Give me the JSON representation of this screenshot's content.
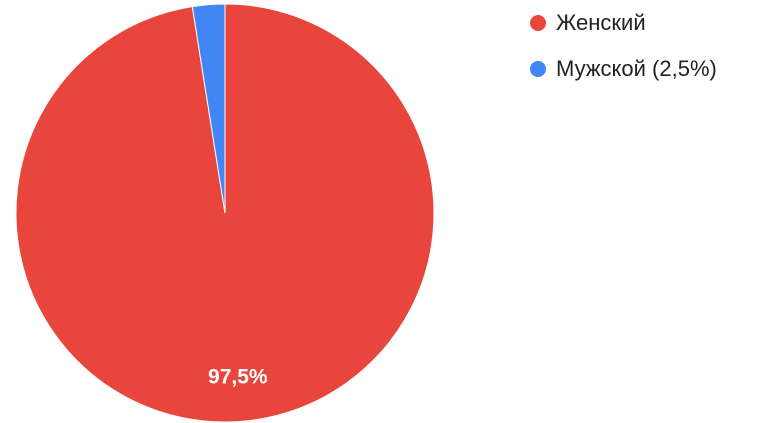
{
  "chart_data": {
    "type": "pie",
    "slices": [
      {
        "label": "Женский",
        "legend_text": "Женский",
        "value": 97.5,
        "data_label": "97,5%",
        "color": "#e8453c"
      },
      {
        "label": "Мужской",
        "legend_text": "Мужской (2,5%)",
        "value": 2.5,
        "data_label": "",
        "color": "#4285f4"
      }
    ],
    "legend_position": "top-right",
    "start_angle": "12 o'clock",
    "direction": "clockwise"
  }
}
